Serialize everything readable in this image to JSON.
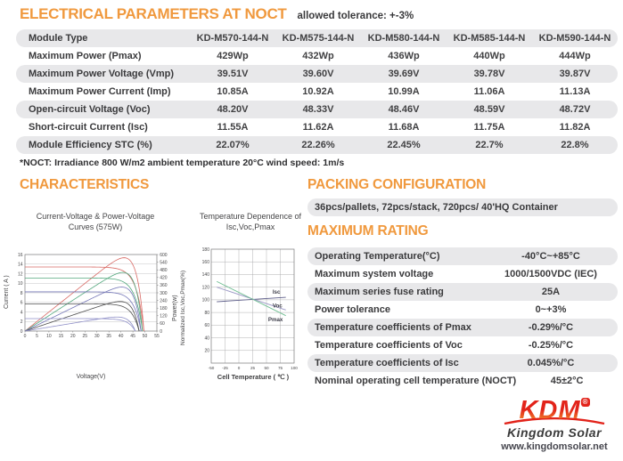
{
  "header": {
    "title": "ELECTRICAL PARAMETERS AT NOCT",
    "tolerance": "allowed tolerance: +-3%"
  },
  "electrical_table": {
    "columns": [
      "Module Type",
      "KD-M570-144-N",
      "KD-M575-144-N",
      "KD-M580-144-N",
      "KD-M585-144-N",
      "KD-M590-144-N"
    ],
    "rows": [
      {
        "label": "Maximum Power (Pmax)",
        "values": [
          "429Wp",
          "432Wp",
          "436Wp",
          "440Wp",
          "444Wp"
        ]
      },
      {
        "label": "Maximum Power Voltage (Vmp)",
        "values": [
          "39.51V",
          "39.60V",
          "39.69V",
          "39.78V",
          "39.87V"
        ]
      },
      {
        "label": "Maximum Power Current (Imp)",
        "values": [
          "10.85A",
          "10.92A",
          "10.99A",
          "11.06A",
          "11.13A"
        ]
      },
      {
        "label": "Open-circuit Voltage (Voc)",
        "values": [
          "48.20V",
          "48.33V",
          "48.46V",
          "48.59V",
          "48.72V"
        ]
      },
      {
        "label": "Short-circuit Current (Isc)",
        "values": [
          "11.55A",
          "11.62A",
          "11.68A",
          "11.75A",
          "11.82A"
        ]
      },
      {
        "label": "Module Efficiency STC (%)",
        "values": [
          "22.07%",
          "22.26%",
          "22.45%",
          "22.7%",
          "22.8%"
        ]
      }
    ],
    "footnote": "*NOCT: Irradiance 800 W/m2 ambient temperature 20°C wind speed: 1m/s"
  },
  "characteristics": {
    "heading": "CHARACTERISTICS"
  },
  "packing": {
    "heading": "PACKING CONFIGURATION",
    "text": "36pcs/pallets, 72pcs/stack, 720pcs/ 40'HQ Container"
  },
  "maximum_rating": {
    "heading": "MAXIMUM RATING",
    "rows": [
      {
        "label": "Operating Temperature(°C)",
        "value": "-40°C~+85°C"
      },
      {
        "label": "Maximum system voltage",
        "value": "1000/1500VDC (IEC)"
      },
      {
        "label": "Maximum series fuse rating",
        "value": "25A"
      },
      {
        "label": "Power tolerance",
        "value": "0~+3%"
      },
      {
        "label": "Temperature coefficients of Pmax",
        "value": "-0.29%/°C"
      },
      {
        "label": "Temperature coefficients of Voc",
        "value": "-0.25%/°C"
      },
      {
        "label": "Temperature coefficients of Isc",
        "value": "0.045%/°C"
      },
      {
        "label": "Nominal operating cell temperature (NOCT)",
        "value": "45±2°C"
      }
    ]
  },
  "chart_data": [
    {
      "type": "line",
      "title": "Current-Voltage & Power-Voltage Curves (575W)",
      "xlabel": "Voltage(V)",
      "ylabel_left": "Current ( A )",
      "ylabel_right": "Power(w)",
      "xlim": [
        0,
        55
      ],
      "xtick_step": 5,
      "ylim_left": [
        0,
        16
      ],
      "ytick_step_left": 2,
      "ylim_right": [
        0,
        600
      ],
      "ytick_step_right": 60,
      "grid": "horizontal",
      "series": [
        {
          "color": "#D96B66",
          "isc": 13.4,
          "voc": 49.6,
          "pmax": 575
        },
        {
          "color": "#53A87E",
          "isc": 11.1,
          "voc": 49.0,
          "pmax": 460
        },
        {
          "color": "#7678B8",
          "isc": 8.2,
          "voc": 48.4,
          "pmax": 345
        },
        {
          "color": "#4E4E4E",
          "isc": 5.7,
          "voc": 47.6,
          "pmax": 232
        },
        {
          "color": "#9090C8",
          "isc": 2.6,
          "voc": 46.0,
          "pmax": 110
        }
      ]
    },
    {
      "type": "line",
      "title": "Temperature Dependence of Isc,Voc,Pmax",
      "xlabel": "Cell Temperature ( ℃ )",
      "ylabel": "Normalized Isc,Voc,Pmax(%)",
      "xlim": [
        -50,
        100
      ],
      "xtick_step": 25,
      "ylim": [
        0,
        180
      ],
      "ytick_step": 20,
      "grid": "both",
      "series": [
        {
          "name": "Isc",
          "color": "#5C5C88",
          "points": [
            [
              -40,
              97
            ],
            [
              85,
              104
            ]
          ],
          "label_at": [
            61,
            110
          ]
        },
        {
          "name": "Voc",
          "color": "#9A96C4",
          "points": [
            [
              -40,
              120
            ],
            [
              85,
              84
            ]
          ],
          "label_at": [
            61,
            88
          ]
        },
        {
          "name": "Pmax",
          "color": "#6FBE92",
          "points": [
            [
              -40,
              129
            ],
            [
              85,
              75
            ]
          ],
          "label_at": [
            53,
            66
          ]
        }
      ]
    }
  ],
  "logo": {
    "brand": "KDM",
    "registered": "®",
    "name": "Kingdom Solar",
    "website": "www.kingdomsolar.net"
  },
  "colors": {
    "accent": "#F0993E",
    "row_gray": "#E8E8EA",
    "text_dark": "#3A3A3C",
    "logo_red": "#E2231A"
  }
}
